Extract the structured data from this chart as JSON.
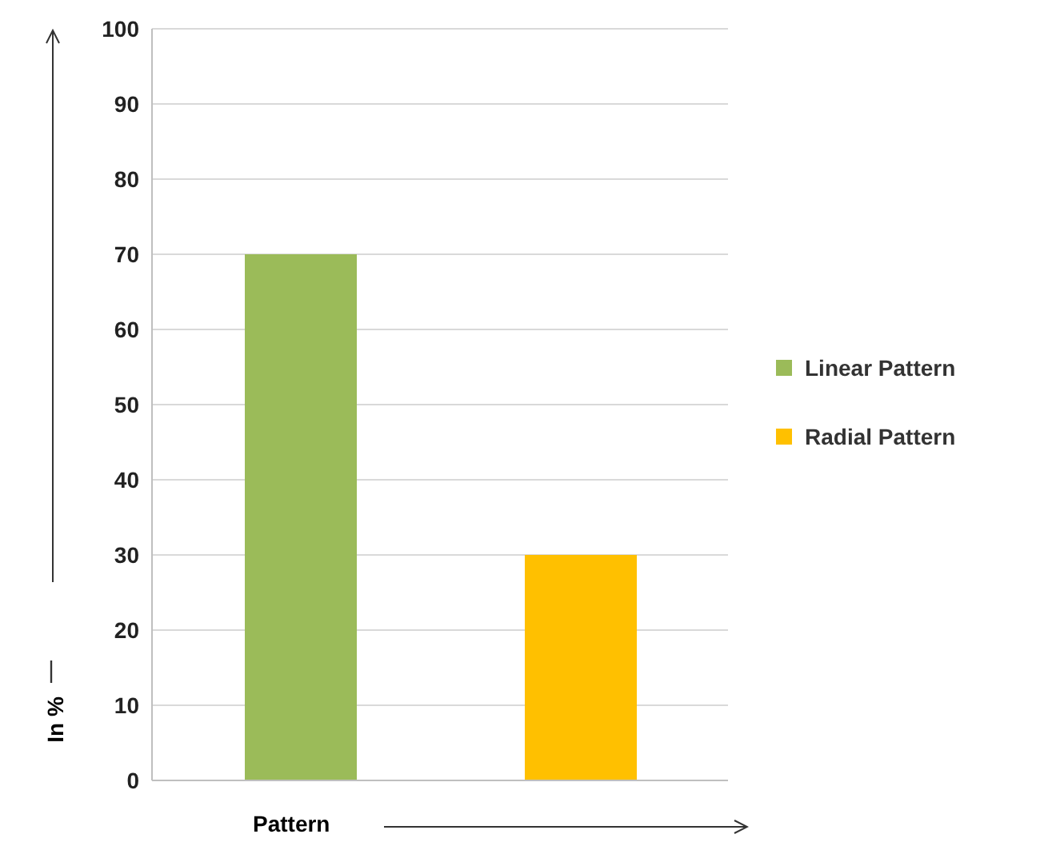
{
  "chart_data": {
    "type": "bar",
    "categories": [
      null
    ],
    "xlabel": "Pattern",
    "ylabel": "In %",
    "series": [
      {
        "name": "Linear Pattern",
        "color": "#9bbb59",
        "values": [
          70
        ]
      },
      {
        "name": "Radial Pattern",
        "color": "#ffc000",
        "values": [
          30
        ]
      }
    ],
    "ylim": [
      0,
      100
    ],
    "yticks": [
      0,
      10,
      20,
      30,
      40,
      50,
      60,
      70,
      80,
      90,
      100
    ],
    "grid": "y",
    "legend": "right"
  }
}
